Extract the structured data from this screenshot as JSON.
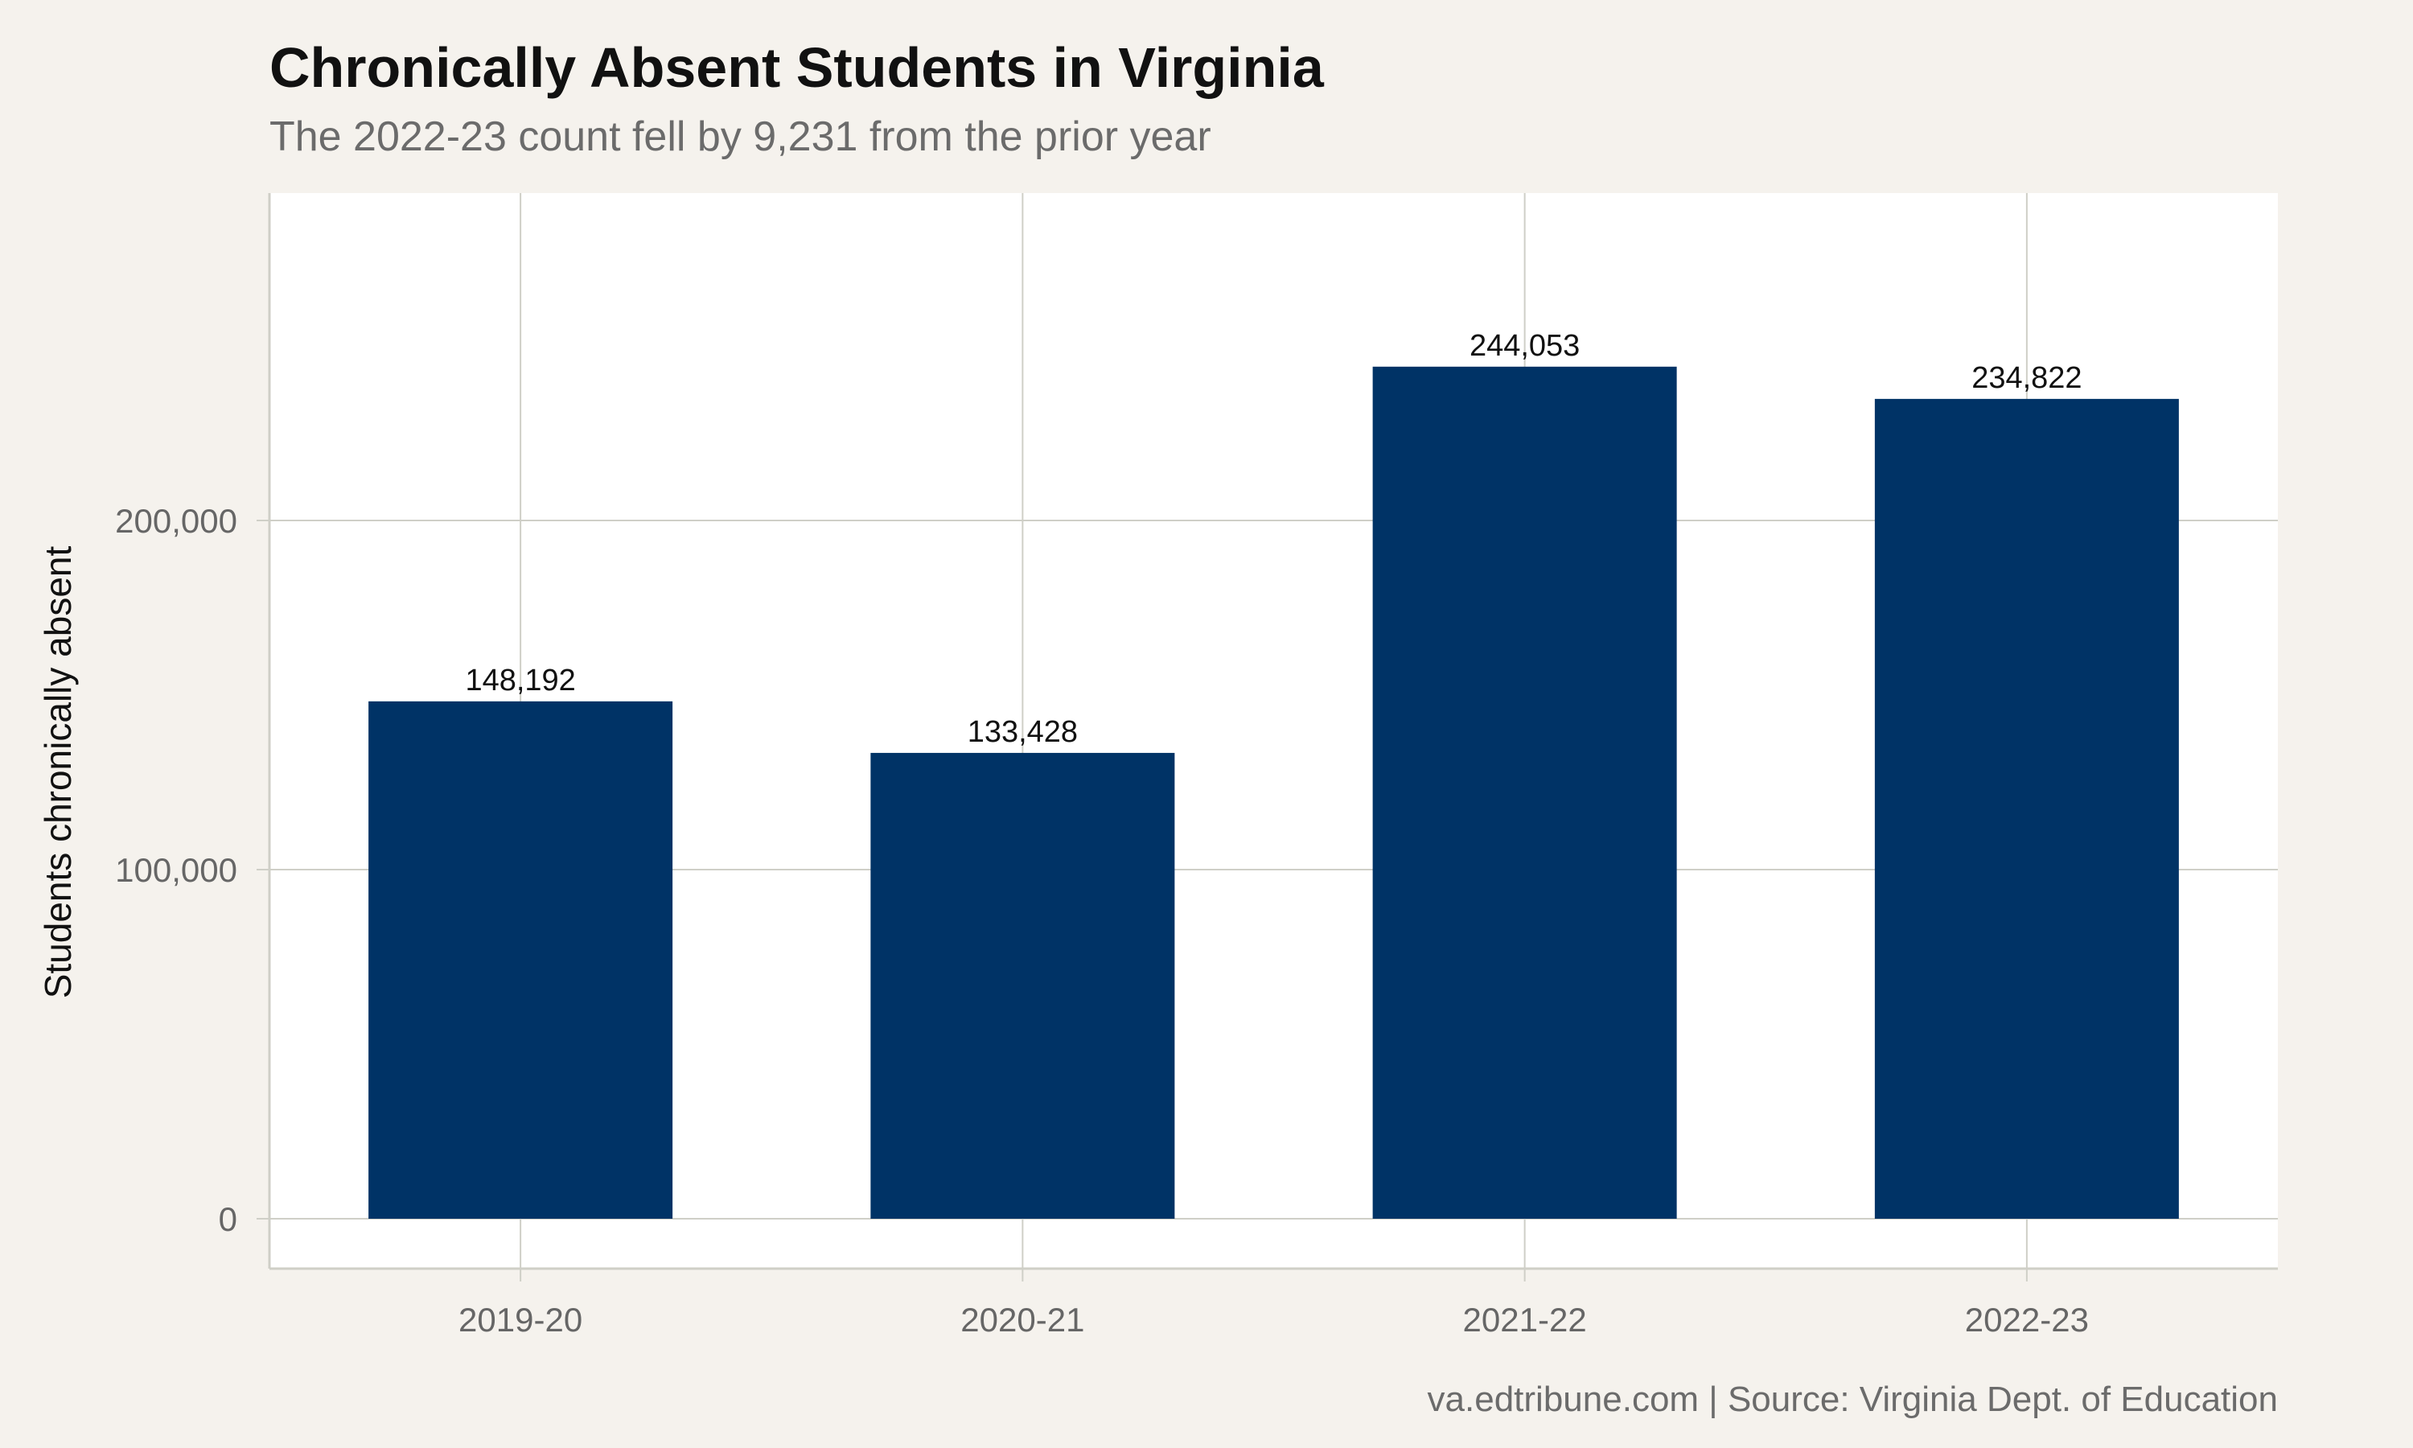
{
  "header": {
    "title": "Chronically Absent Students in Virginia",
    "subtitle": "The 2022-23 count fell by 9,231 from the prior year"
  },
  "footer": {
    "caption": "va.edtribune.com | Source: Virginia Dept. of Education"
  },
  "colors": {
    "bar": "#003366",
    "panel": "#ffffff",
    "background": "#f5f2ed",
    "grid": "#cfcfc7"
  },
  "chart_data": {
    "type": "bar",
    "title": "Chronically Absent Students in Virginia",
    "subtitle": "The 2022-23 count fell by 9,231 from the prior year",
    "xlabel": "",
    "ylabel": "Students chronically absent",
    "categories": [
      "2019-20",
      "2020-21",
      "2021-22",
      "2022-23"
    ],
    "values": [
      148192,
      133428,
      244053,
      234822
    ],
    "value_labels": [
      "148,192",
      "133,428",
      "244,053",
      "234,822"
    ],
    "ylim": [
      0,
      290000
    ],
    "yticks": [
      0,
      100000,
      200000
    ],
    "ytick_labels": [
      "0",
      "100,000",
      "200,000"
    ],
    "grid": true,
    "legend": "none"
  }
}
